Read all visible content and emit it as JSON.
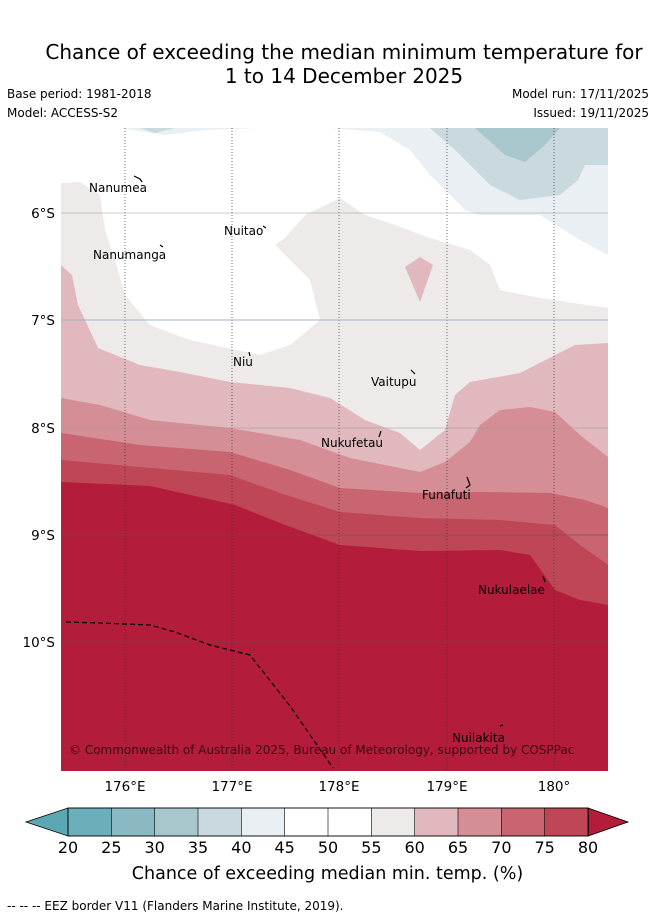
{
  "title": {
    "line1": "Chance of exceeding the median minimum temperature for",
    "line2": "1 to 14 December 2025"
  },
  "meta": {
    "base_period": "Base period: 1981-2018",
    "model": "Model: ACCESS-S2",
    "model_run": "Model run: 17/11/2025",
    "issued": "Issued: 19/11/2025"
  },
  "map": {
    "lat_ticks": [
      "6°S",
      "7°S",
      "8°S",
      "9°S",
      "10°S"
    ],
    "lon_ticks": [
      "176°E",
      "177°E",
      "178°E",
      "179°E",
      "180°"
    ],
    "places": [
      "Nanumea",
      "Nanumanga",
      "Nuitao",
      "Niu",
      "Vaitupu",
      "Nukufetau",
      "Funafuti",
      "Nukulaelae",
      "Nuilakita"
    ],
    "copyright": "© Commonwealth of Australia 2025, Bureau of Meteorology, supported by COSPPac"
  },
  "colorbar": {
    "ticks": [
      "20",
      "25",
      "30",
      "35",
      "40",
      "45",
      "50",
      "55",
      "60",
      "65",
      "70",
      "75",
      "80"
    ],
    "colors": [
      "#6aafba",
      "#8ab9c4",
      "#a8c7cc",
      "#c9d9de",
      "#e9eff2",
      "#ffffff",
      "#ffffff",
      "#eeeaea",
      "#e0b8be",
      "#d58d96",
      "#c96570",
      "#bf4655",
      "#b31c3a"
    ],
    "under_color": "#5ba8b4",
    "over_color": "#b31c3a",
    "label": "Chance of exceeding median min. temp. (%)"
  },
  "footnote": "-- -- -- EEZ border V11 (Flanders Marine Institute, 2019)."
}
